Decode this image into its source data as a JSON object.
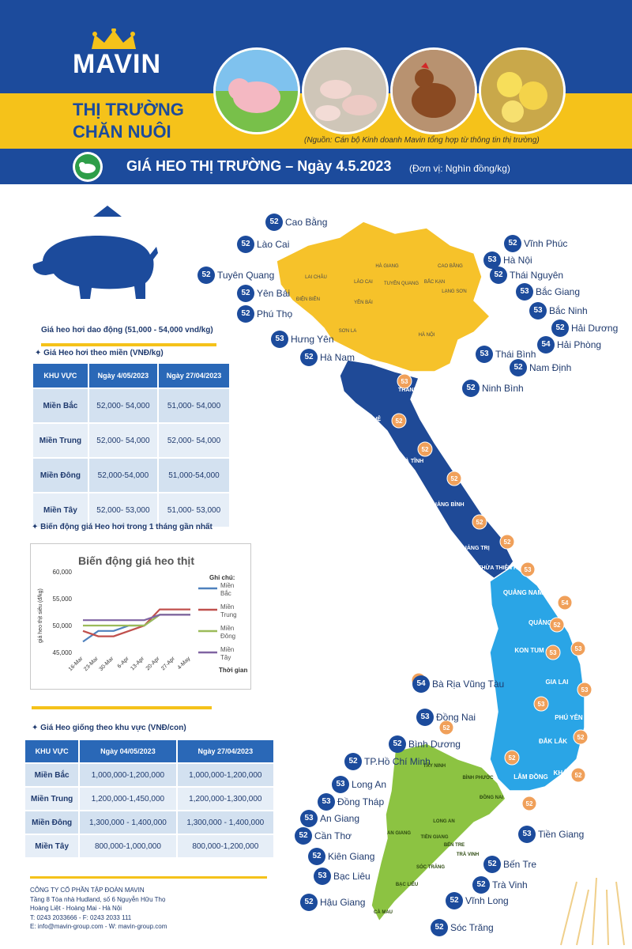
{
  "header": {
    "brand": "MAVIN",
    "title_line1": "THỊ TRƯỜNG",
    "title_line2": "CHĂN NUÔI",
    "source_note": "(Nguồn: Cán bộ Kinh doanh Mavin tổng hợp từ thông tin thị trường)",
    "banner_title": "GIÁ HEO THỊ TRƯỜNG – Ngày 4.5.2023",
    "banner_unit": "(Đơn vị: Nghìn đồng/kg)"
  },
  "live_pig": {
    "range_note": "Giá heo hơi dao động (51,000 - 54,000 vnd/kg)",
    "section_title": "Giá Heo hơi theo miền (VNĐ/kg)",
    "headers": [
      "KHU VỰC",
      "Ngày 4/05/2023",
      "Ngày 27/04/2023"
    ],
    "rows": [
      {
        "region": "Miền Bắc",
        "d1": "52,000- 54,000",
        "d2": "51,000- 54,000"
      },
      {
        "region": "Miền Trung",
        "d1": "52,000- 54,000",
        "d2": "52,000- 54,000"
      },
      {
        "region": "Miền Đông",
        "d1": "52,000-54,000",
        "d2": "51,000-54,000"
      },
      {
        "region": "Miền Tây",
        "d1": "52,000- 53,000",
        "d2": "51,000- 53,000"
      }
    ]
  },
  "trend_section_title": "Biến động giá Heo hơi trong 1 tháng gần nhất",
  "chart_data": {
    "type": "line",
    "title": "Biến động giá heo thịt",
    "xlabel": "Thời gian",
    "ylabel": "giá heo thịt siêu (đ/kg)",
    "ylim": [
      45000,
      60000
    ],
    "yticks": [
      "60,000",
      "55,000",
      "50,000",
      "45,000"
    ],
    "legend_title": "Ghi chú:",
    "legend_position": "right",
    "categories": [
      "16-Mar",
      "23-Mar",
      "30-Mar",
      "6-Apr",
      "13-Apr",
      "20-Apr",
      "27-Apr",
      "4-May"
    ],
    "series": [
      {
        "name": "Miền Bắc",
        "color": "#4f81bd",
        "values": [
          47000,
          49000,
          49000,
          50000,
          50000,
          52000,
          52000,
          52000
        ]
      },
      {
        "name": "Miền Trung",
        "color": "#c0504d",
        "values": [
          49000,
          48000,
          48000,
          49000,
          50000,
          53000,
          53000,
          53000
        ]
      },
      {
        "name": "Miền Đông",
        "color": "#9bbb59",
        "values": [
          50000,
          50000,
          50000,
          50000,
          50000,
          52000,
          52000,
          52000
        ]
      },
      {
        "name": "Miền Tây",
        "color": "#8064a2",
        "values": [
          51000,
          51000,
          51000,
          51000,
          51000,
          52000,
          52000,
          52000
        ]
      }
    ]
  },
  "piglet": {
    "section_title": "Giá Heo giống theo khu vực (VNĐ/con)",
    "headers": [
      "KHU VỰC",
      "Ngày 04/05/2023",
      "Ngày 27/04/2023"
    ],
    "rows": [
      {
        "region": "Miền Bắc",
        "d1": "1,000,000-1,200,000",
        "d2": "1,000,000-1,200,000"
      },
      {
        "region": "Miền Trung",
        "d1": "1,200,000-1,450,000",
        "d2": "1,200,000-1,300,000"
      },
      {
        "region": "Miền Đông",
        "d1": "1,300,000 - 1,400,000",
        "d2": "1,300,000 - 1,400,000"
      },
      {
        "region": "Miền Tây",
        "d1": "800,000-1,000,000",
        "d2": "800,000-1,200,000"
      }
    ]
  },
  "footer": {
    "company": "CÔNG TY CỔ PHẦN TẬP ĐOÀN MAVIN",
    "address1": "Tầng 8 Tòa nhà Hudland, số 6 Nguyễn Hữu Thọ",
    "address2": "Hoàng Liệt - Hoàng Mai - Hà Nội",
    "phone": "T: 0243 2033666 - F: 0243 2033 111",
    "contact": "E: info@mavin-group.com - W: mavin-group.com"
  },
  "provinces": [
    {
      "name": "Cao Bằng",
      "price": "52"
    },
    {
      "name": "Lào Cai",
      "price": "52"
    },
    {
      "name": "Tuyên Quang",
      "price": "52"
    },
    {
      "name": "Yên Bái",
      "price": "52"
    },
    {
      "name": "Phú Thọ",
      "price": "52"
    },
    {
      "name": "Hưng Yên",
      "price": "53"
    },
    {
      "name": "Hà Nam",
      "price": "52"
    },
    {
      "name": "Vĩnh Phúc",
      "price": "52"
    },
    {
      "name": "Hà Nội",
      "price": "53"
    },
    {
      "name": "Thái Nguyên",
      "price": "52"
    },
    {
      "name": "Bắc Giang",
      "price": "53"
    },
    {
      "name": "Bắc Ninh",
      "price": "53"
    },
    {
      "name": "Hải Dương",
      "price": "52"
    },
    {
      "name": "Hải Phòng",
      "price": "54"
    },
    {
      "name": "Thái Bình",
      "price": "53"
    },
    {
      "name": "Nam Định",
      "price": "52"
    },
    {
      "name": "Ninh Bình",
      "price": "52"
    },
    {
      "name": "Bà Rịa Vũng Tàu",
      "price": "54"
    },
    {
      "name": "Đồng Nai",
      "price": "53"
    },
    {
      "name": "Bình Dương",
      "price": "52"
    },
    {
      "name": "TP.Hồ Chí Minh",
      "price": "52"
    },
    {
      "name": "Long An",
      "price": "53"
    },
    {
      "name": "Đồng Tháp",
      "price": "53"
    },
    {
      "name": "An Giang",
      "price": "53"
    },
    {
      "name": "Cần Thơ",
      "price": "52"
    },
    {
      "name": "Kiên Giang",
      "price": "52"
    },
    {
      "name": "Bạc Liêu",
      "price": "53"
    },
    {
      "name": "Hậu Giang",
      "price": "52"
    },
    {
      "name": "Tiền Giang",
      "price": "53"
    },
    {
      "name": "Bến Tre",
      "price": "52"
    },
    {
      "name": "Trà Vinh",
      "price": "52"
    },
    {
      "name": "Vĩnh Long",
      "price": "52"
    },
    {
      "name": "Sóc Trăng",
      "price": "52"
    }
  ],
  "map_text": {
    "north": [
      "HÀ GIANG",
      "CAO BẰNG",
      "LAI CHÂU",
      "LÀO CAI",
      "TUYÊN QUANG",
      "BẮC KẠN",
      "LẠNG SƠN",
      "ĐIỆN BIÊN",
      "YÊN BÁI",
      "SƠN LA",
      "HÀ NỘI"
    ],
    "central": [
      "THANH HÓA",
      "NGHỆ",
      "HÀ TĨNH",
      "QUẢNG BÌNH",
      "QUẢNG TRỊ",
      "THỪA THIÊN HUẾ",
      "QUẢNG NAM",
      "QUẢNG NGÃI",
      "KON TUM",
      "GIA LAI",
      "PHÚ YÊN",
      "ĐẮK LẮK",
      "KHÁNH HÒA",
      "LÂM ĐỒNG"
    ],
    "south": [
      "TÂY NINH",
      "BÌNH PHƯỚC",
      "ĐỒNG NAI",
      "LONG AN",
      "BẾN TRE",
      "TRÀ VINH",
      "SÓC TRĂNG",
      "BẠC LIÊU",
      "CÀ MAU",
      "AN GIANG",
      "TIỀN GIANG"
    ]
  },
  "map_badges": [
    "53",
    "52",
    "52",
    "52",
    "52",
    "52",
    "53",
    "54",
    "52",
    "53",
    "53",
    "53",
    "53",
    "52",
    "52",
    "52",
    "52",
    "52",
    "52"
  ],
  "colors": {
    "navy": "#1c4b9c",
    "yellow": "#f5c21a",
    "north": "#f6c22a",
    "central_north": "#1f4a97",
    "central_south": "#2aa5e6",
    "south": "#8cc342",
    "badge_orange": "#f0a05a"
  }
}
